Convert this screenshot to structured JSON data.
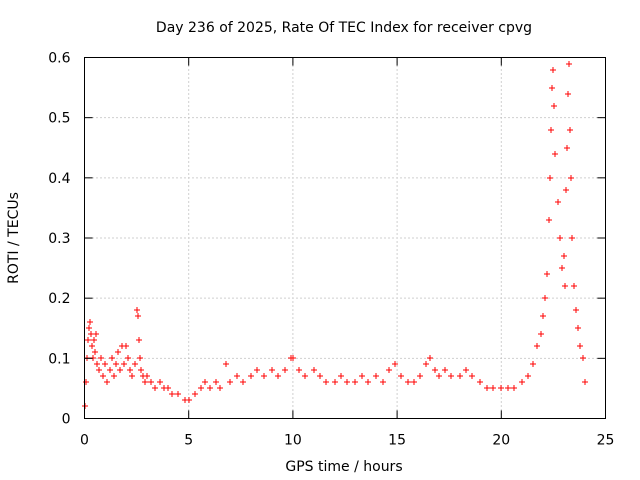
{
  "chart_data": {
    "type": "scatter",
    "title": "Day 236 of 2025, Rate Of TEC Index for receiver cpvg",
    "xlabel": "GPS time / hours",
    "ylabel": "ROTI / TECUs",
    "xlim": [
      0,
      25
    ],
    "ylim": [
      0,
      0.6
    ],
    "x_ticks": [
      0,
      5,
      10,
      15,
      20,
      25
    ],
    "x_tick_labels": [
      "0",
      "5",
      "10",
      "15",
      "20",
      "25"
    ],
    "y_ticks": [
      0,
      0.1,
      0.2,
      0.3,
      0.4,
      0.5,
      0.6
    ],
    "y_tick_labels": [
      "0",
      "0.1",
      "0.2",
      "0.3",
      "0.4",
      "0.5",
      "0.6"
    ],
    "grid": true,
    "marker": "+",
    "color": "#ff0000",
    "series": [
      {
        "name": "ROTI",
        "points": [
          [
            0.0,
            0.02
          ],
          [
            0.05,
            0.06
          ],
          [
            0.1,
            0.1
          ],
          [
            0.15,
            0.13
          ],
          [
            0.2,
            0.15
          ],
          [
            0.25,
            0.16
          ],
          [
            0.3,
            0.14
          ],
          [
            0.35,
            0.12
          ],
          [
            0.4,
            0.1
          ],
          [
            0.45,
            0.13
          ],
          [
            0.5,
            0.11
          ],
          [
            0.55,
            0.14
          ],
          [
            0.6,
            0.09
          ],
          [
            0.7,
            0.08
          ],
          [
            0.8,
            0.1
          ],
          [
            0.9,
            0.07
          ],
          [
            1.0,
            0.09
          ],
          [
            1.1,
            0.06
          ],
          [
            1.2,
            0.08
          ],
          [
            1.3,
            0.1
          ],
          [
            1.4,
            0.07
          ],
          [
            1.5,
            0.09
          ],
          [
            1.6,
            0.11
          ],
          [
            1.7,
            0.08
          ],
          [
            1.8,
            0.12
          ],
          [
            1.9,
            0.09
          ],
          [
            2.0,
            0.12
          ],
          [
            2.1,
            0.1
          ],
          [
            2.2,
            0.08
          ],
          [
            2.3,
            0.07
          ],
          [
            2.4,
            0.09
          ],
          [
            2.5,
            0.18
          ],
          [
            2.55,
            0.17
          ],
          [
            2.6,
            0.13
          ],
          [
            2.65,
            0.1
          ],
          [
            2.7,
            0.08
          ],
          [
            2.8,
            0.07
          ],
          [
            2.9,
            0.06
          ],
          [
            3.0,
            0.07
          ],
          [
            3.2,
            0.06
          ],
          [
            3.4,
            0.05
          ],
          [
            3.6,
            0.06
          ],
          [
            3.8,
            0.05
          ],
          [
            4.0,
            0.05
          ],
          [
            4.2,
            0.04
          ],
          [
            4.5,
            0.04
          ],
          [
            4.8,
            0.03
          ],
          [
            5.0,
            0.03
          ],
          [
            5.3,
            0.04
          ],
          [
            5.6,
            0.05
          ],
          [
            5.8,
            0.06
          ],
          [
            6.0,
            0.05
          ],
          [
            6.3,
            0.06
          ],
          [
            6.5,
            0.05
          ],
          [
            6.8,
            0.09
          ],
          [
            7.0,
            0.06
          ],
          [
            7.3,
            0.07
          ],
          [
            7.6,
            0.06
          ],
          [
            8.0,
            0.07
          ],
          [
            8.3,
            0.08
          ],
          [
            8.6,
            0.07
          ],
          [
            9.0,
            0.08
          ],
          [
            9.3,
            0.07
          ],
          [
            9.6,
            0.08
          ],
          [
            9.9,
            0.1
          ],
          [
            10.0,
            0.1
          ],
          [
            10.3,
            0.08
          ],
          [
            10.6,
            0.07
          ],
          [
            11.0,
            0.08
          ],
          [
            11.3,
            0.07
          ],
          [
            11.6,
            0.06
          ],
          [
            12.0,
            0.06
          ],
          [
            12.3,
            0.07
          ],
          [
            12.6,
            0.06
          ],
          [
            13.0,
            0.06
          ],
          [
            13.3,
            0.07
          ],
          [
            13.6,
            0.06
          ],
          [
            14.0,
            0.07
          ],
          [
            14.3,
            0.06
          ],
          [
            14.6,
            0.08
          ],
          [
            14.9,
            0.09
          ],
          [
            15.2,
            0.07
          ],
          [
            15.5,
            0.06
          ],
          [
            15.8,
            0.06
          ],
          [
            16.1,
            0.07
          ],
          [
            16.4,
            0.09
          ],
          [
            16.6,
            0.1
          ],
          [
            16.8,
            0.08
          ],
          [
            17.0,
            0.07
          ],
          [
            17.3,
            0.08
          ],
          [
            17.6,
            0.07
          ],
          [
            18.0,
            0.07
          ],
          [
            18.3,
            0.08
          ],
          [
            18.6,
            0.07
          ],
          [
            19.0,
            0.06
          ],
          [
            19.3,
            0.05
          ],
          [
            19.6,
            0.05
          ],
          [
            20.0,
            0.05
          ],
          [
            20.3,
            0.05
          ],
          [
            20.6,
            0.05
          ],
          [
            21.0,
            0.06
          ],
          [
            21.3,
            0.07
          ],
          [
            21.5,
            0.09
          ],
          [
            21.7,
            0.12
          ],
          [
            21.9,
            0.14
          ],
          [
            22.0,
            0.17
          ],
          [
            22.1,
            0.2
          ],
          [
            22.2,
            0.24
          ],
          [
            22.3,
            0.33
          ],
          [
            22.35,
            0.4
          ],
          [
            22.4,
            0.48
          ],
          [
            22.45,
            0.55
          ],
          [
            22.5,
            0.58
          ],
          [
            22.55,
            0.52
          ],
          [
            22.6,
            0.44
          ],
          [
            22.7,
            0.36
          ],
          [
            22.8,
            0.3
          ],
          [
            22.9,
            0.25
          ],
          [
            23.0,
            0.27
          ],
          [
            23.05,
            0.22
          ],
          [
            23.1,
            0.38
          ],
          [
            23.15,
            0.45
          ],
          [
            23.2,
            0.54
          ],
          [
            23.25,
            0.59
          ],
          [
            23.3,
            0.48
          ],
          [
            23.35,
            0.4
          ],
          [
            23.4,
            0.3
          ],
          [
            23.5,
            0.22
          ],
          [
            23.6,
            0.18
          ],
          [
            23.7,
            0.15
          ],
          [
            23.8,
            0.12
          ],
          [
            23.9,
            0.1
          ],
          [
            24.0,
            0.06
          ]
        ]
      }
    ]
  }
}
